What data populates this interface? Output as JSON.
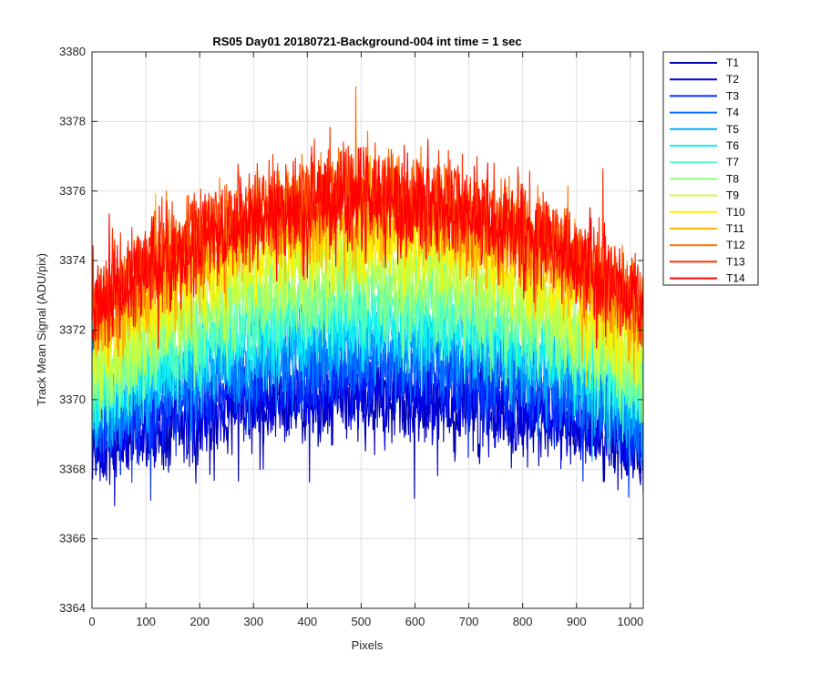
{
  "chart_data": {
    "type": "line",
    "title": "RS05 Day01 20180721-Background-004 int time = 1 sec",
    "xlabel": "Pixels",
    "ylabel": "Track Mean Signal (ADU/pix)",
    "xlim": [
      0,
      1024
    ],
    "ylim": [
      3364,
      3380
    ],
    "xticks": [
      0,
      100,
      200,
      300,
      400,
      500,
      600,
      700,
      800,
      900,
      1000
    ],
    "yticks": [
      3364,
      3366,
      3368,
      3370,
      3372,
      3374,
      3376,
      3378,
      3380
    ],
    "grid": true,
    "legend_position": "outside-top-right",
    "series_model": "baseline(x) = edge + (peak - edge) * (1 - ((x - 512)/512)^2); noisy trace around baseline",
    "series": [
      {
        "name": "T1",
        "color": "#0000AF",
        "peak": 3370.0,
        "edge": 3368.5,
        "noise": 1.2
      },
      {
        "name": "T2",
        "color": "#0000E6",
        "peak": 3370.3,
        "edge": 3368.8,
        "noise": 1.2
      },
      {
        "name": "T3",
        "color": "#0030FF",
        "peak": 3370.8,
        "edge": 3369.0,
        "noise": 1.2
      },
      {
        "name": "T4",
        "color": "#0070FF",
        "peak": 3371.3,
        "edge": 3369.4,
        "noise": 1.2
      },
      {
        "name": "T5",
        "color": "#00B0FF",
        "peak": 3371.8,
        "edge": 3369.7,
        "noise": 1.2
      },
      {
        "name": "T6",
        "color": "#10F0F0",
        "peak": 3372.3,
        "edge": 3370.0,
        "noise": 1.2
      },
      {
        "name": "T7",
        "color": "#50FFC0",
        "peak": 3372.8,
        "edge": 3370.3,
        "noise": 1.2
      },
      {
        "name": "T8",
        "color": "#90FF80",
        "peak": 3373.3,
        "edge": 3370.6,
        "noise": 1.3
      },
      {
        "name": "T9",
        "color": "#C8FF40",
        "peak": 3374.0,
        "edge": 3371.0,
        "noise": 1.3
      },
      {
        "name": "T10",
        "color": "#FFF000",
        "peak": 3374.8,
        "edge": 3371.5,
        "noise": 1.3
      },
      {
        "name": "T11",
        "color": "#FFB000",
        "peak": 3375.3,
        "edge": 3372.0,
        "noise": 1.3
      },
      {
        "name": "T12",
        "color": "#FF7000",
        "peak": 3375.8,
        "edge": 3372.5,
        "noise": 1.3
      },
      {
        "name": "T13",
        "color": "#FF3000",
        "peak": 3376.0,
        "edge": 3372.8,
        "noise": 1.3
      },
      {
        "name": "T14",
        "color": "#FF0000",
        "peak": 3375.6,
        "edge": 3372.6,
        "noise": 1.3
      }
    ]
  }
}
